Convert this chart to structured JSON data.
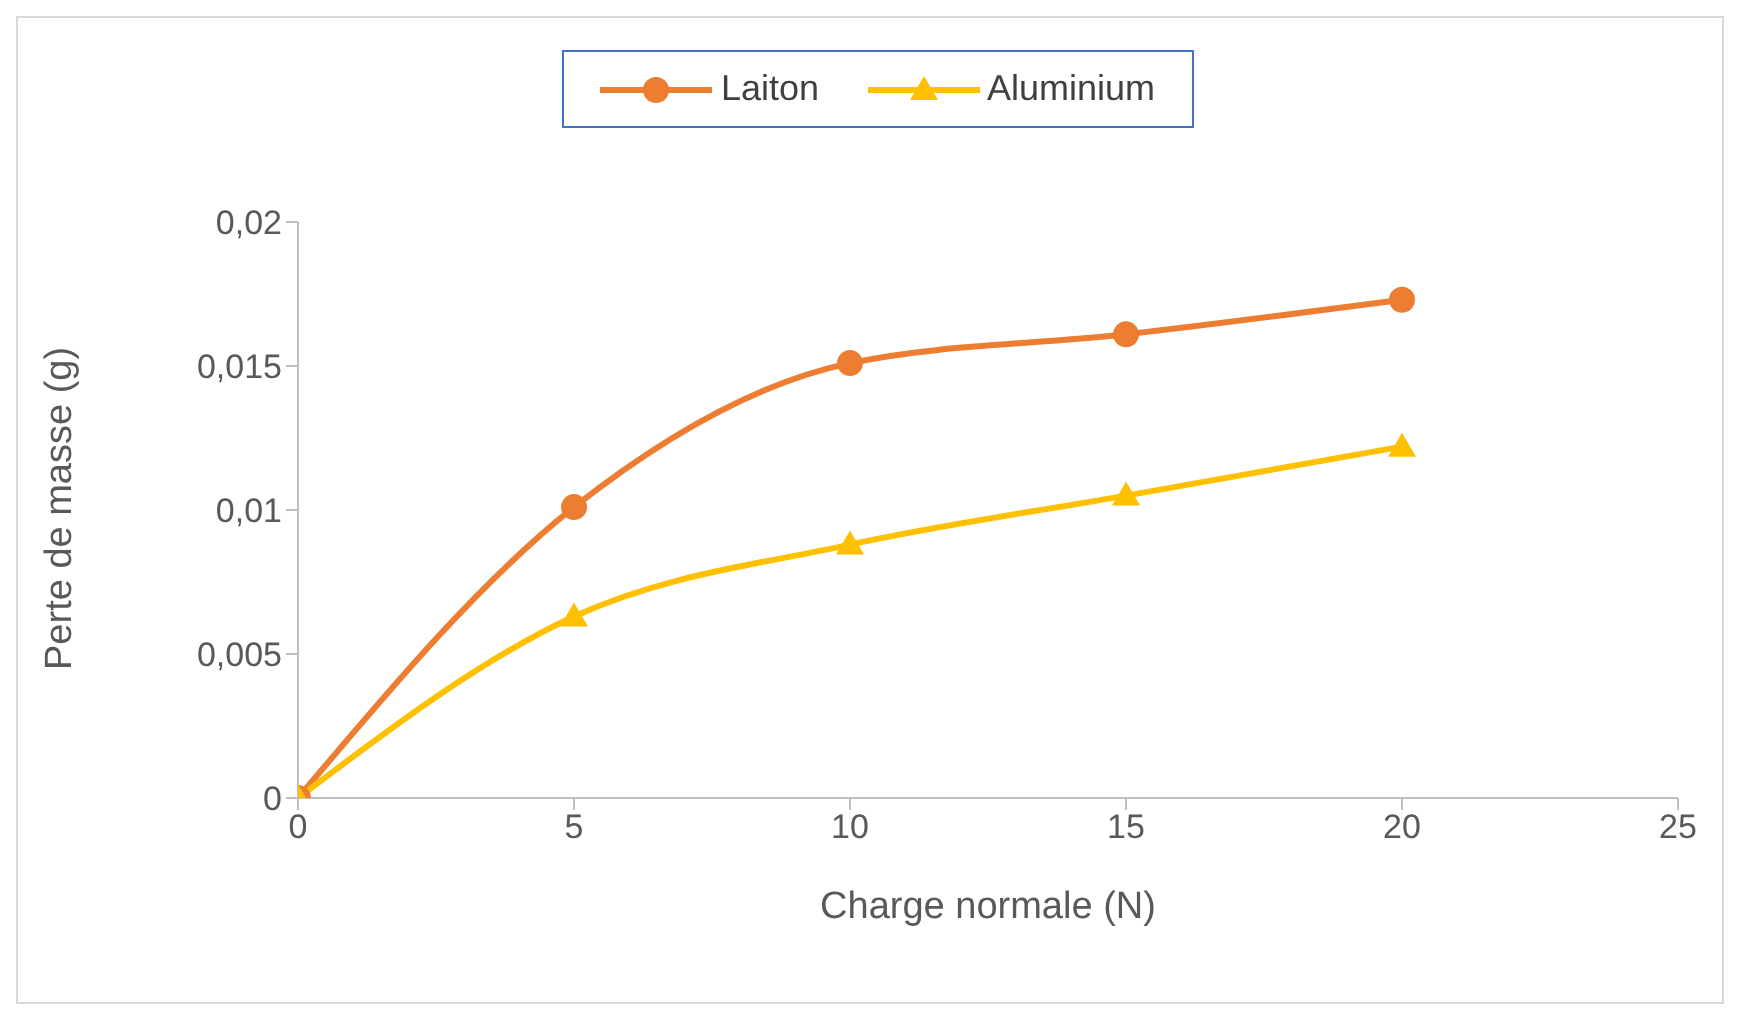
{
  "chart_data": {
    "type": "line",
    "xlabel": "Charge normale (N)",
    "ylabel": "Perte de masse (g)",
    "x": [
      0,
      5,
      10,
      15,
      20
    ],
    "series": [
      {
        "name": "Laiton",
        "color": "#ed7d31",
        "marker": "circle",
        "values": [
          0,
          0.0101,
          0.0151,
          0.0161,
          0.0173
        ]
      },
      {
        "name": "Aluminium",
        "color": "#ffc000",
        "marker": "triangle",
        "values": [
          0,
          0.0063,
          0.0088,
          0.0105,
          0.0122
        ]
      }
    ],
    "xlim": [
      0,
      25
    ],
    "xticks": [
      0,
      5,
      10,
      15,
      20,
      25
    ],
    "ylim": [
      0,
      0.02
    ],
    "yticks": [
      0,
      {
        "value": 0.005,
        "label": "0,005"
      },
      {
        "value": 0.01,
        "label": "0,01"
      },
      {
        "value": 0.015,
        "label": "0,015"
      },
      {
        "value": 0.02,
        "label": "0,02"
      }
    ],
    "grid": false,
    "legend": "top",
    "line_style": "solid"
  }
}
